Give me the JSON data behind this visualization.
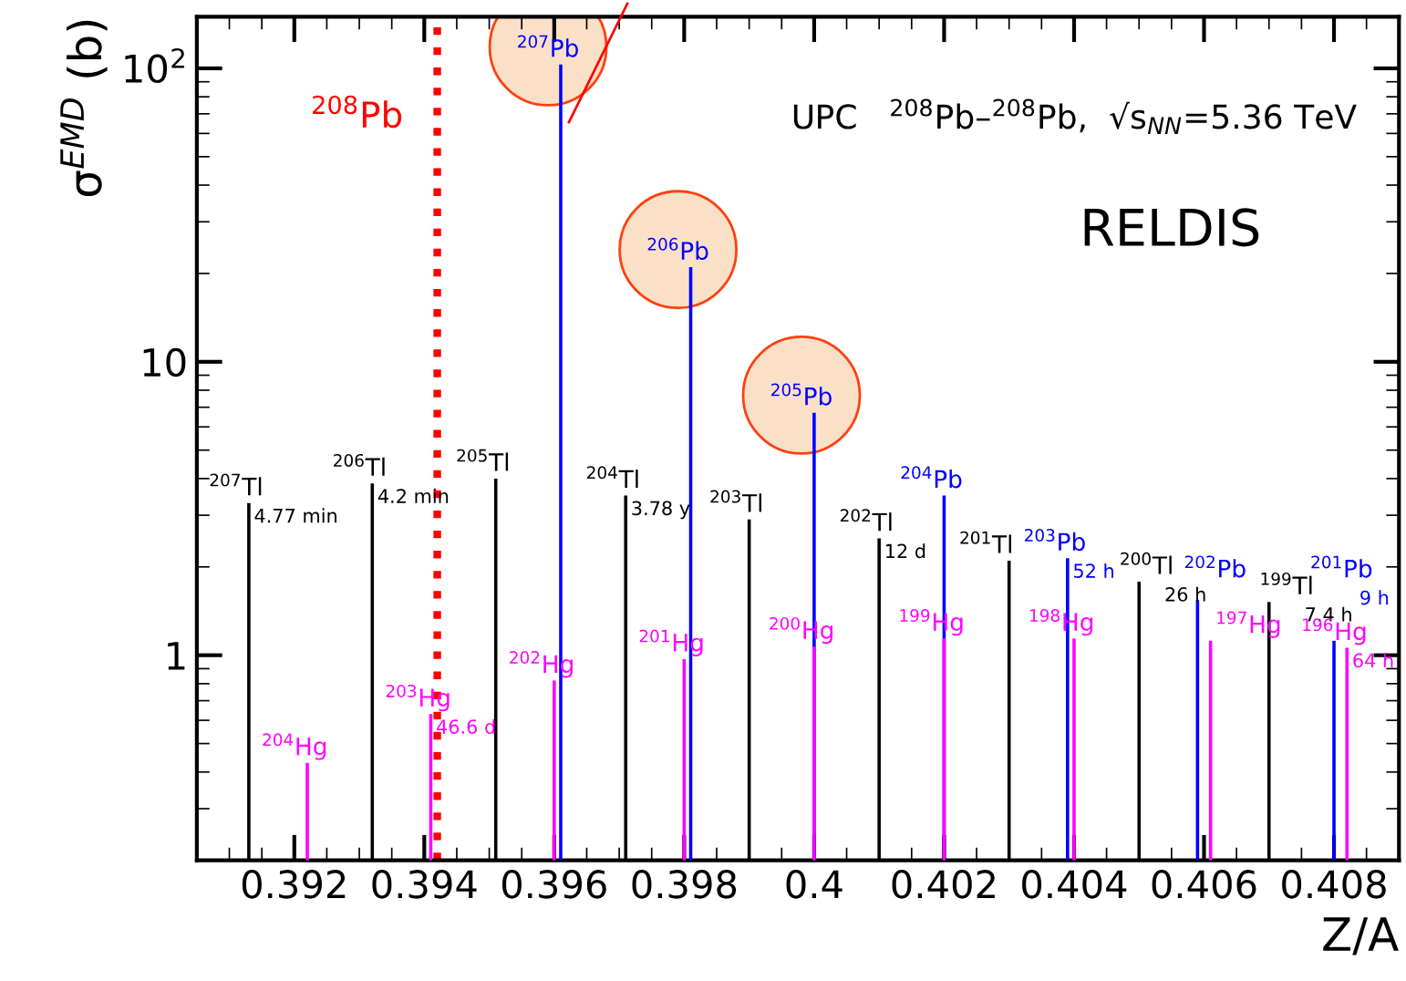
{
  "chart_data": {
    "type": "bar",
    "xlabel": "Z/A",
    "ylabel": "σ$^{EMD}$ (b)",
    "series": [
      {
        "color": "#000000",
        "x": [
          0.3913,
          0.3932,
          0.3951,
          0.3971,
          0.399,
          0.401,
          0.403,
          0.405,
          0.407
        ],
        "values": [
          3.3,
          3.85,
          4.0,
          3.5,
          2.9,
          2.5,
          2.1,
          1.78,
          1.52
        ]
      },
      {
        "color": "#ff00ff",
        "x": [
          0.3922,
          0.3941,
          0.396,
          0.398,
          0.4,
          0.402,
          0.404,
          0.4061,
          0.4082
        ],
        "values": [
          0.43,
          0.63,
          0.82,
          0.97,
          1.07,
          1.14,
          1.14,
          1.12,
          1.06
        ]
      },
      {
        "color": "#0000ff",
        "x": [
          0.3961,
          0.3981,
          0.4,
          0.402,
          0.4039,
          0.4059,
          0.408
        ],
        "values": [
          103,
          21,
          6.7,
          3.5,
          2.14,
          1.54,
          1.12
        ]
      }
    ],
    "ref_lines": [
      {
        "axis": "x",
        "value": 0.3942,
        "label": "$^{208}$Pb",
        "color": "#ff0000",
        "line_style": "dotted"
      }
    ],
    "annotations": [
      "UPC   $^{208}$Pb–$^{208}$Pb,  √s$_{NN}$=5.36 TeV",
      "RELDIS",
      {
        "text": "$^{207}$Tl",
        "x": 0.3913,
        "y": 3.3
      },
      {
        "text": "4.77 min",
        "x": 0.3913,
        "y": 3.3
      },
      {
        "text": "$^{206}$Tl",
        "x": 0.3932,
        "y": 3.85
      },
      {
        "text": "4.2 min",
        "x": 0.3932,
        "y": 3.85
      },
      {
        "text": "$^{205}$Tl",
        "x": 0.3951,
        "y": 4.0
      },
      {
        "text": "$^{204}$Tl",
        "x": 0.3971,
        "y": 3.5
      },
      {
        "text": "3.78 y",
        "x": 0.3971,
        "y": 3.5
      },
      {
        "text": "$^{203}$Tl",
        "x": 0.399,
        "y": 2.9
      },
      {
        "text": "$^{202}$Tl",
        "x": 0.401,
        "y": 2.5
      },
      {
        "text": "12 d",
        "x": 0.401,
        "y": 2.5
      },
      {
        "text": "$^{201}$Tl",
        "x": 0.403,
        "y": 2.1
      },
      {
        "text": "$^{200}$Tl",
        "x": 0.405,
        "y": 1.78
      },
      {
        "text": "26 h",
        "x": 0.405,
        "y": 1.78
      },
      {
        "text": "$^{199}$Tl",
        "x": 0.407,
        "y": 1.52
      },
      {
        "text": "7.4 h",
        "x": 0.407,
        "y": 1.52
      },
      {
        "text": "$^{204}$Hg",
        "x": 0.3922,
        "y": 0.43
      },
      {
        "text": "$^{203}$Hg",
        "x": 0.3941,
        "y": 0.63
      },
      {
        "text": "46.6 d",
        "x": 0.3941,
        "y": 0.63
      },
      {
        "text": "$^{202}$Hg",
        "x": 0.396,
        "y": 0.82
      },
      {
        "text": "$^{201}$Hg",
        "x": 0.398,
        "y": 0.97
      },
      {
        "text": "$^{200}$Hg",
        "x": 0.4,
        "y": 1.07
      },
      {
        "text": "$^{199}$Hg",
        "x": 0.402,
        "y": 1.14
      },
      {
        "text": "$^{198}$Hg",
        "x": 0.404,
        "y": 1.14
      },
      {
        "text": "$^{197}$Hg",
        "x": 0.4061,
        "y": 1.12
      },
      {
        "text": "$^{196}$Hg",
        "x": 0.4082,
        "y": 1.06
      },
      {
        "text": "64 h",
        "x": 0.4082,
        "y": 1.06
      },
      {
        "text": "$^{207}$Pb",
        "x": 0.3961,
        "y": 103
      },
      {
        "text": "$^{206}$Pb",
        "x": 0.3981,
        "y": 21
      },
      {
        "text": "$^{205}$Pb",
        "x": 0.4,
        "y": 6.7
      },
      {
        "text": "$^{204}$Pb",
        "x": 0.402,
        "y": 3.5
      },
      {
        "text": "$^{203}$Pb",
        "x": 0.4039,
        "y": 2.14
      },
      {
        "text": "52 h",
        "x": 0.4039,
        "y": 2.14
      },
      {
        "text": "$^{202}$Pb",
        "x": 0.4059,
        "y": 1.54
      },
      {
        "text": "$^{201}$Pb",
        "x": 0.408,
        "y": 1.12
      },
      {
        "text": "9 h",
        "x": 0.408,
        "y": 1.12
      }
    ],
    "log": "y",
    "xlim": [
      0.3905,
      0.409
    ],
    "xticks": [
      0.392,
      0.394,
      0.396,
      0.398,
      0.4,
      0.402,
      0.404,
      0.406,
      0.408
    ],
    "ylim": [
      0.2,
      150
    ],
    "yticks": [
      1,
      10,
      {
        "value": 100,
        "label": "10$^{2}$"
      }
    ],
    "grid": false
  }
}
